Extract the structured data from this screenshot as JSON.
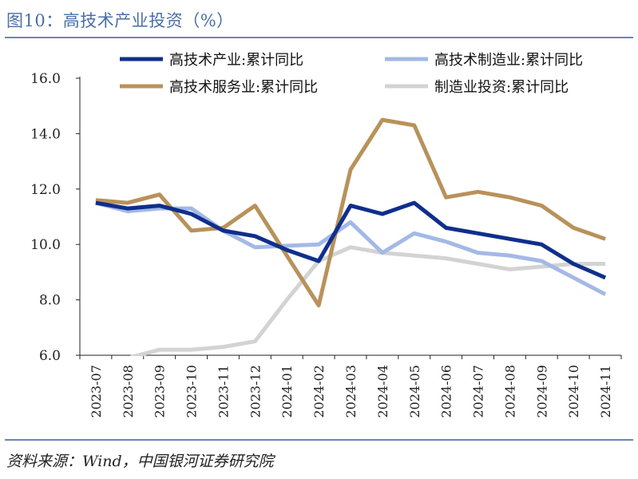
{
  "figure": {
    "title": "图10：高技术产业投资（%）",
    "source": "资料来源：Wind，中国银河证券研究院"
  },
  "chart_data": {
    "type": "line",
    "x": [
      "2023-07",
      "2023-08",
      "2023-09",
      "2023-10",
      "2023-11",
      "2023-12",
      "2024-01",
      "2024-02",
      "2024-03",
      "2024-04",
      "2024-05",
      "2024-06",
      "2024-07",
      "2024-08",
      "2024-09",
      "2024-10",
      "2024-11"
    ],
    "ylim": [
      6.0,
      16.0
    ],
    "yticks": [
      "6.0",
      "8.0",
      "10.0",
      "12.0",
      "14.0",
      "16.0"
    ],
    "grid": false,
    "legend_position": "top",
    "series": [
      {
        "name": "高技术产业:累计同比",
        "color": "#0f2f8c",
        "values": [
          11.5,
          11.3,
          11.4,
          11.1,
          10.5,
          10.3,
          9.8,
          9.4,
          11.4,
          11.1,
          11.5,
          10.6,
          10.4,
          10.2,
          10.0,
          9.3,
          8.8
        ]
      },
      {
        "name": "高技术制造业:累计同比",
        "color": "#a3b9e6",
        "values": [
          11.5,
          11.2,
          11.3,
          11.3,
          10.5,
          9.9,
          9.95,
          10.0,
          10.8,
          9.7,
          10.4,
          10.1,
          9.7,
          9.6,
          9.4,
          8.8,
          8.2
        ]
      },
      {
        "name": "高技术服务业:累计同比",
        "color": "#b8925a",
        "values": [
          11.6,
          11.5,
          11.8,
          10.5,
          10.6,
          11.4,
          9.6,
          7.8,
          12.7,
          14.5,
          14.3,
          11.7,
          11.9,
          11.7,
          11.4,
          10.6,
          10.2
        ]
      },
      {
        "name": "制造业投资:累计同比",
        "color": "#d3d3d3",
        "values": [
          5.7,
          5.9,
          6.2,
          6.2,
          6.3,
          6.5,
          8.0,
          9.4,
          9.9,
          9.7,
          9.6,
          9.5,
          9.3,
          9.1,
          9.2,
          9.3,
          9.3
        ]
      }
    ]
  }
}
